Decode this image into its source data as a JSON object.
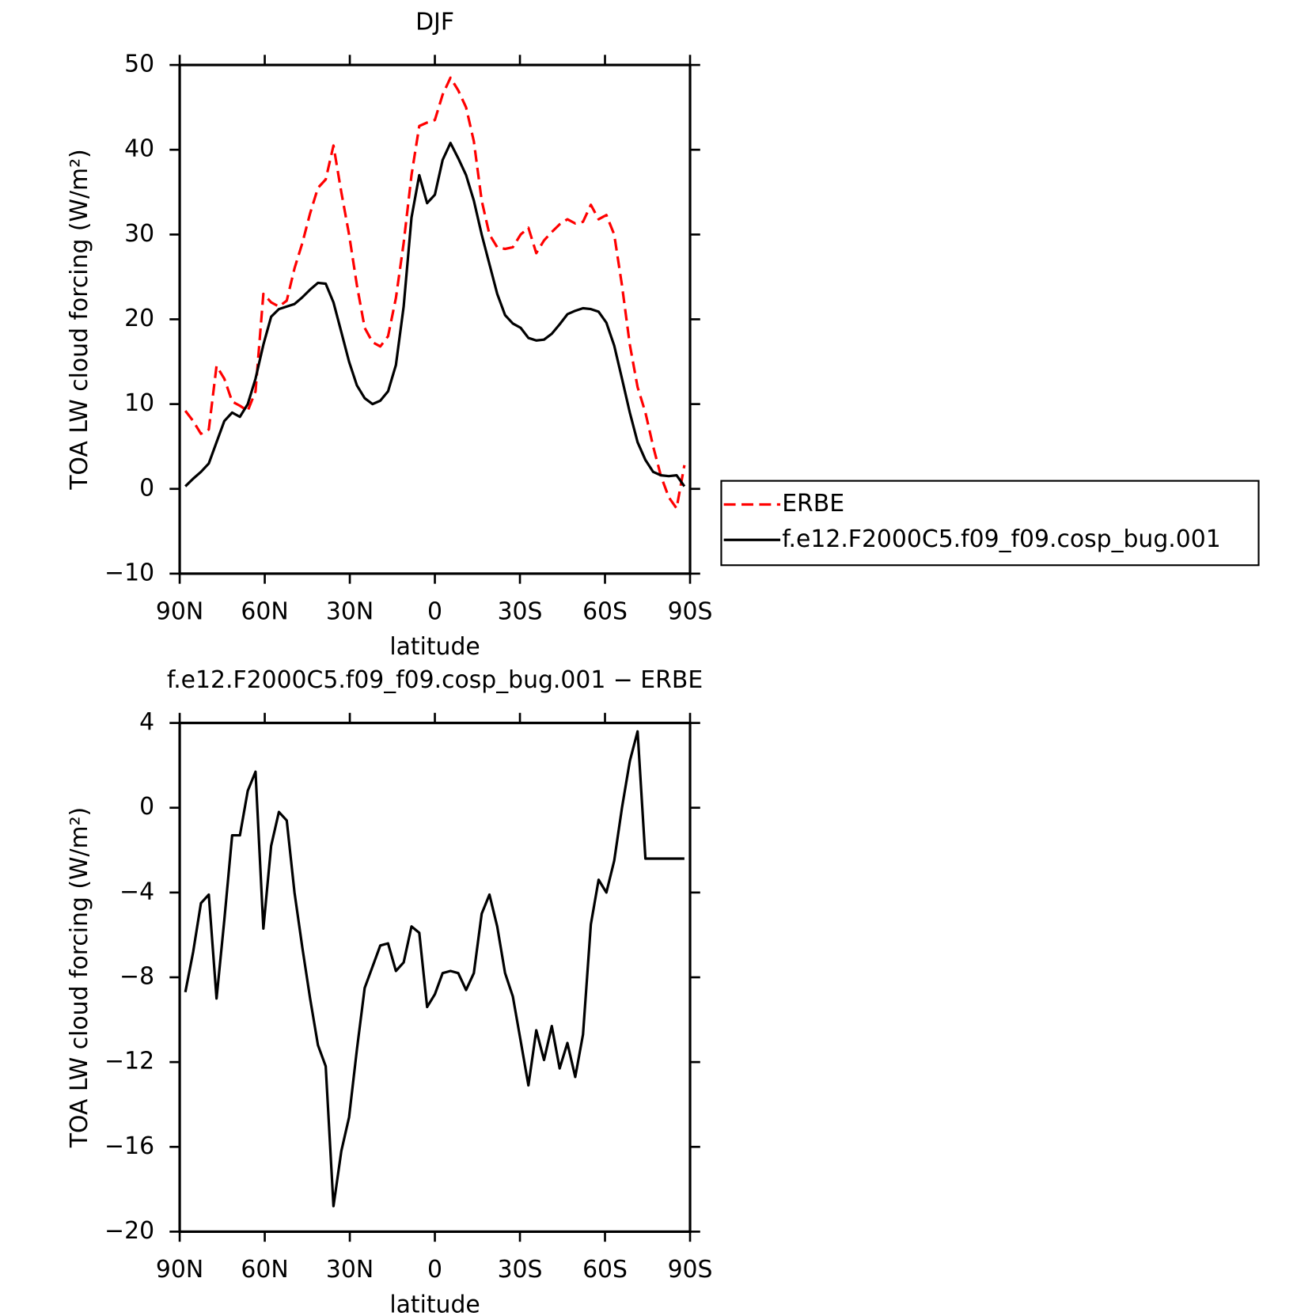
{
  "chart_data": [
    {
      "type": "line",
      "title": "DJF",
      "x_label": "latitude",
      "y_label": "TOA LW cloud forcing (W/m²)",
      "xlim": [
        90,
        -90
      ],
      "xticks": [
        {
          "value": 90,
          "label": "90N"
        },
        {
          "value": 60,
          "label": "60N"
        },
        {
          "value": 30,
          "label": "30N"
        },
        0,
        {
          "value": -30,
          "label": "30S"
        },
        {
          "value": -60,
          "label": "60S"
        },
        {
          "value": -90,
          "label": "90S"
        }
      ],
      "ylim": [
        -10,
        50
      ],
      "yticks": [
        -10,
        0,
        10,
        20,
        30,
        40,
        50
      ],
      "legend": "right",
      "x": [
        88,
        85.25,
        82.5,
        79.75,
        77,
        74.25,
        71.5,
        68.75,
        66,
        63.25,
        60.5,
        57.75,
        55,
        52.25,
        49.5,
        46.75,
        44,
        41.25,
        38.5,
        35.75,
        33,
        30.25,
        27.5,
        24.75,
        22,
        19.25,
        16.5,
        13.75,
        11,
        8.25,
        5.5,
        2.75,
        0,
        -2.75,
        -5.5,
        -8.25,
        -11,
        -13.75,
        -16.5,
        -19.25,
        -22,
        -24.75,
        -27.5,
        -30.25,
        -33,
        -35.75,
        -38.5,
        -41.25,
        -44,
        -46.75,
        -49.5,
        -52.25,
        -55,
        -57.75,
        -60.5,
        -63.25,
        -66,
        -68.75,
        -71.5,
        -74.25,
        -77,
        -79.75,
        -82.5,
        -85.25,
        -88
      ],
      "series": [
        {
          "name": "ERBE",
          "color": "#ff0000",
          "dashed": true,
          "values": [
            9.2,
            8,
            6.5,
            7,
            14.5,
            13,
            10.3,
            9.8,
            9.2,
            11.5,
            23,
            22,
            21.5,
            22.2,
            26,
            29,
            32.5,
            35.5,
            36.5,
            40.5,
            35,
            30,
            24,
            19,
            17.3,
            16.8,
            18,
            22.5,
            29,
            37,
            42.8,
            43.2,
            43.5,
            46.5,
            48.5,
            47,
            45,
            41,
            34,
            30,
            28.5,
            28.3,
            28.5,
            30,
            30.8,
            27.8,
            29.3,
            30.3,
            31.2,
            31.8,
            31.3,
            31.5,
            33.5,
            31.8,
            32.3,
            30,
            24,
            17,
            12,
            9,
            5,
            1.5,
            -1,
            -2.3,
            2.8
          ]
        },
        {
          "name": "f.e12.F2000C5.f09_f09.cosp_bug.001",
          "color": "#000000",
          "dashed": false,
          "values": [
            0.3,
            1.2,
            2,
            3,
            5.5,
            8,
            9,
            8.5,
            10,
            13,
            17,
            20.3,
            21.2,
            21.5,
            21.8,
            22.6,
            23.5,
            24.3,
            24.2,
            22,
            18.5,
            15,
            12.2,
            10.7,
            10,
            10.4,
            11.5,
            14.6,
            21.5,
            32,
            37,
            33.7,
            34.7,
            38.8,
            40.8,
            39,
            37,
            34,
            30,
            26.5,
            23,
            20.5,
            19.5,
            19,
            17.8,
            17.5,
            17.6,
            18.3,
            19.4,
            20.6,
            21,
            21.3,
            21.2,
            20.9,
            19.6,
            16.9,
            13,
            9,
            5.5,
            3.4,
            2,
            1.6,
            1.5,
            1.6,
            0.3
          ]
        }
      ]
    },
    {
      "type": "line",
      "title": "f.e12.F2000C5.f09_f09.cosp_bug.001 − ERBE",
      "x_label": "latitude",
      "y_label": "TOA LW cloud forcing (W/m²)",
      "xlim": [
        90,
        -90
      ],
      "xticks": [
        {
          "value": 90,
          "label": "90N"
        },
        {
          "value": 60,
          "label": "60N"
        },
        {
          "value": 30,
          "label": "30N"
        },
        0,
        {
          "value": -30,
          "label": "30S"
        },
        {
          "value": -60,
          "label": "60S"
        },
        {
          "value": -90,
          "label": "90S"
        }
      ],
      "ylim": [
        -20,
        4
      ],
      "yticks": [
        -20,
        -16,
        -12,
        -8,
        -4,
        0,
        4
      ],
      "x": [
        88,
        85.25,
        82.5,
        79.75,
        77,
        74.25,
        71.5,
        68.75,
        66,
        63.25,
        60.5,
        57.75,
        55,
        52.25,
        49.5,
        46.75,
        44,
        41.25,
        38.5,
        35.75,
        33,
        30.25,
        27.5,
        24.75,
        22,
        19.25,
        16.5,
        13.75,
        11,
        8.25,
        5.5,
        2.75,
        0,
        -2.75,
        -5.5,
        -8.25,
        -11,
        -13.75,
        -16.5,
        -19.25,
        -22,
        -24.75,
        -27.5,
        -30.25,
        -33,
        -35.75,
        -38.5,
        -41.25,
        -44,
        -46.75,
        -49.5,
        -52.25,
        -55,
        -57.75,
        -60.5,
        -63.25,
        -66,
        -68.75,
        -71.5,
        -74.25,
        -77,
        -79.75,
        -82.5,
        -85.25,
        -88
      ],
      "color": "#000000",
      "values": [
        -8.7,
        -6.8,
        -4.5,
        -4.1,
        -9,
        -5.3,
        -1.3,
        -1.3,
        0.8,
        1.7,
        -5.7,
        -1.8,
        -0.2,
        -0.6,
        -4,
        -6.6,
        -9,
        -11.2,
        -12.2,
        -18.8,
        -16.2,
        -14.6,
        -11.4,
        -8.5,
        -7.5,
        -6.5,
        -6.4,
        -7.7,
        -7.3,
        -5.6,
        -5.9,
        -9.4,
        -8.8,
        -7.8,
        -7.7,
        -7.8,
        -8.6,
        -7.8,
        -5,
        -4.1,
        -5.6,
        -7.8,
        -8.9,
        -11,
        -13.1,
        -10.5,
        -11.9,
        -10.3,
        -12.3,
        -11.1,
        -12.7,
        -10.7,
        -5.5,
        -3.4,
        -4,
        -2.5,
        0,
        2.2,
        3.6,
        -2.4,
        -2.4,
        -2.4,
        -2.4,
        -2.4,
        -2.4
      ]
    }
  ]
}
